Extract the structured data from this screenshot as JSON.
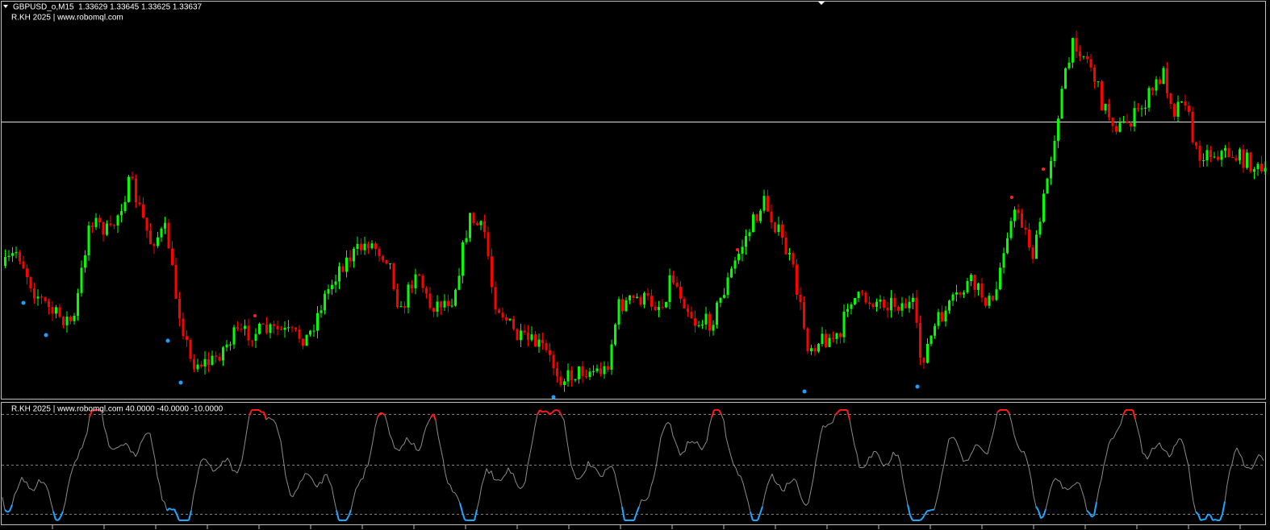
{
  "header": {
    "symbol_line": "GBPUSD_o,M15  1.33629 1.33645 1.33625 1.33637",
    "indicator_label": "R.KH 2025 | www.robomql.com"
  },
  "subwindow": {
    "label": "R.KH 2025 | www.robomql.com 40.0000 -40.0000 -10.0000"
  }
}
